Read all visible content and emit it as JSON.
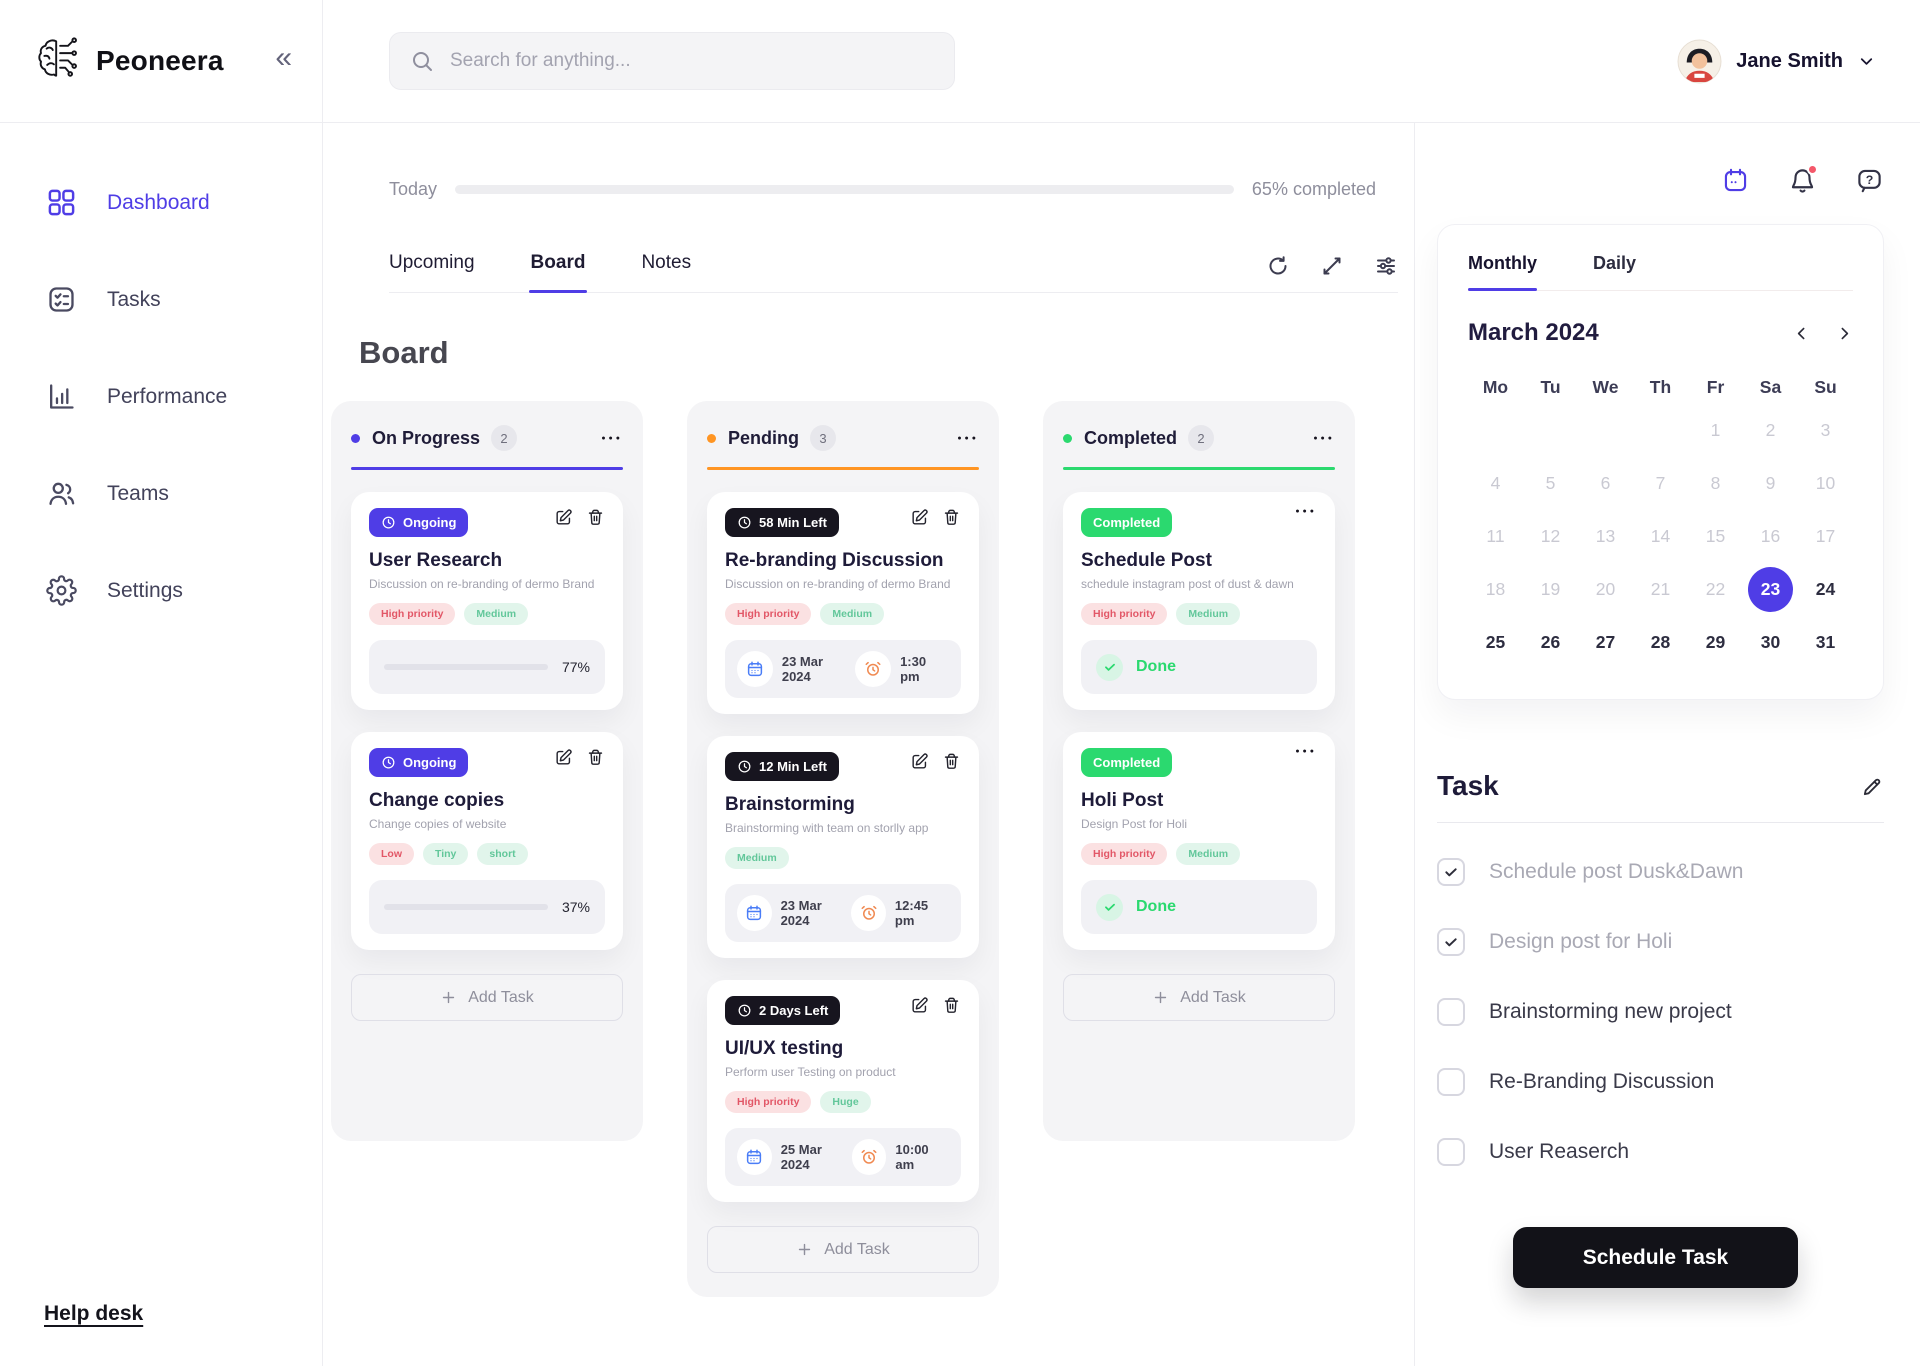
{
  "colors": {
    "primary": "#4f3de6",
    "orange": "#ff9523",
    "green": "#2bd96f"
  },
  "brand": {
    "name": "Peoneera"
  },
  "topbar": {
    "search_placeholder": "Search for anything...",
    "user_name": "Jane Smith"
  },
  "sidebar": {
    "items": [
      {
        "label": "Dashboard",
        "icon": "grid",
        "active": true
      },
      {
        "label": "Tasks",
        "icon": "tasks",
        "active": false
      },
      {
        "label": "Performance",
        "icon": "performance",
        "active": false
      },
      {
        "label": "Teams",
        "icon": "teams",
        "active": false
      },
      {
        "label": "Settings",
        "icon": "settings",
        "active": false
      }
    ],
    "help_link": "Help desk"
  },
  "progress": {
    "label": "Today",
    "percent": 65,
    "status_text": "65% completed"
  },
  "view_tabs": [
    {
      "label": "Upcoming",
      "active": false
    },
    {
      "label": "Board",
      "active": true
    },
    {
      "label": "Notes",
      "active": false
    }
  ],
  "board": {
    "title": "Board",
    "columns": [
      {
        "name": "On Progress",
        "count": "2",
        "accent": "primary",
        "add_label": "Add Task",
        "cards": [
          {
            "badge": {
              "label": "Ongoing",
              "style": "indigo",
              "clock": true
            },
            "actions": "edit-trash",
            "title": "User Research",
            "desc": "Discussion on re-branding of dermo Brand",
            "tags": [
              {
                "label": "High priority",
                "color": "red"
              },
              {
                "label": "Medium",
                "color": "green"
              }
            ],
            "footer": {
              "type": "progress",
              "percent": 77,
              "text": "77%"
            }
          },
          {
            "badge": {
              "label": "Ongoing",
              "style": "indigo",
              "clock": true
            },
            "actions": "edit-trash",
            "title": "Change copies",
            "desc": "Change copies of website",
            "tags": [
              {
                "label": "Low",
                "color": "red"
              },
              {
                "label": "Tiny",
                "color": "green"
              },
              {
                "label": "short",
                "color": "green"
              }
            ],
            "footer": {
              "type": "progress",
              "percent": 37,
              "text": "37%"
            }
          }
        ]
      },
      {
        "name": "Pending",
        "count": "3",
        "accent": "orange",
        "add_label": "Add Task",
        "cards": [
          {
            "badge": {
              "label": "58 Min Left",
              "style": "black",
              "clock": true
            },
            "actions": "edit-trash",
            "title": "Re-branding Discussion",
            "desc": "Discussion on re-branding of dermo Brand",
            "tags": [
              {
                "label": "High priority",
                "color": "red"
              },
              {
                "label": "Medium",
                "color": "green"
              }
            ],
            "footer": {
              "type": "schedule",
              "date": "23 Mar 2024",
              "time": "1:30 pm"
            }
          },
          {
            "badge": {
              "label": "12 Min Left",
              "style": "black",
              "clock": true
            },
            "actions": "edit-trash",
            "title": "Brainstorming",
            "desc": "Brainstorming with team on storlly app",
            "tags": [
              {
                "label": "Medium",
                "color": "green"
              }
            ],
            "footer": {
              "type": "schedule",
              "date": "23 Mar 2024",
              "time": "12:45 pm"
            }
          },
          {
            "badge": {
              "label": "2 Days Left",
              "style": "black",
              "clock": true
            },
            "actions": "edit-trash",
            "title": "UI/UX testing",
            "desc": "Perform user Testing on product",
            "tags": [
              {
                "label": "High priority",
                "color": "red"
              },
              {
                "label": "Huge",
                "color": "green"
              }
            ],
            "footer": {
              "type": "schedule",
              "date": "25 Mar 2024",
              "time": "10:00 am"
            }
          }
        ]
      },
      {
        "name": "Completed",
        "count": "2",
        "accent": "green",
        "add_label": "Add Task",
        "cards": [
          {
            "badge": {
              "label": "Completed",
              "style": "green",
              "clock": false
            },
            "actions": "menu",
            "title": "Schedule Post",
            "desc": "schedule instagram post of dust & dawn",
            "tags": [
              {
                "label": "High priority",
                "color": "red"
              },
              {
                "label": "Medium",
                "color": "green"
              }
            ],
            "footer": {
              "type": "done",
              "label": "Done"
            }
          },
          {
            "badge": {
              "label": "Completed",
              "style": "green",
              "clock": false
            },
            "actions": "menu",
            "title": "Holi Post",
            "desc": "Design Post for Holi",
            "tags": [
              {
                "label": "High priority",
                "color": "red"
              },
              {
                "label": "Medium",
                "color": "green"
              }
            ],
            "footer": {
              "type": "done",
              "label": "Done"
            }
          }
        ]
      }
    ]
  },
  "panel": {
    "tabs": [
      {
        "label": "Monthly",
        "active": true
      },
      {
        "label": "Daily",
        "active": false
      }
    ],
    "calendar": {
      "month_label": "March 2024",
      "weekdays": [
        "Mo",
        "Tu",
        "We",
        "Th",
        "Fr",
        "Sa",
        "Su"
      ],
      "days": [
        {
          "d": "",
          "s": "empty"
        },
        {
          "d": "",
          "s": "empty"
        },
        {
          "d": "",
          "s": "empty"
        },
        {
          "d": "",
          "s": "empty"
        },
        {
          "d": "1",
          "s": "muted"
        },
        {
          "d": "2",
          "s": "muted"
        },
        {
          "d": "3",
          "s": "muted"
        },
        {
          "d": "4",
          "s": "muted"
        },
        {
          "d": "5",
          "s": "muted"
        },
        {
          "d": "6",
          "s": "muted"
        },
        {
          "d": "7",
          "s": "muted"
        },
        {
          "d": "8",
          "s": "muted"
        },
        {
          "d": "9",
          "s": "muted"
        },
        {
          "d": "10",
          "s": "muted"
        },
        {
          "d": "11",
          "s": "muted"
        },
        {
          "d": "12",
          "s": "muted"
        },
        {
          "d": "13",
          "s": "muted"
        },
        {
          "d": "14",
          "s": "muted"
        },
        {
          "d": "15",
          "s": "muted"
        },
        {
          "d": "16",
          "s": "muted"
        },
        {
          "d": "17",
          "s": "muted"
        },
        {
          "d": "18",
          "s": "muted"
        },
        {
          "d": "19",
          "s": "muted"
        },
        {
          "d": "20",
          "s": "muted"
        },
        {
          "d": "21",
          "s": "muted"
        },
        {
          "d": "22",
          "s": "muted"
        },
        {
          "d": "23",
          "s": "selected"
        },
        {
          "d": "24",
          "s": "normal"
        },
        {
          "d": "25",
          "s": "normal"
        },
        {
          "d": "26",
          "s": "normal"
        },
        {
          "d": "27",
          "s": "normal"
        },
        {
          "d": "28",
          "s": "normal"
        },
        {
          "d": "29",
          "s": "normal"
        },
        {
          "d": "30",
          "s": "normal"
        },
        {
          "d": "31",
          "s": "normal"
        }
      ]
    },
    "task_section": {
      "title": "Task",
      "items": [
        {
          "label": "Schedule post Dusk&Dawn",
          "checked": true
        },
        {
          "label": "Design post for Holi",
          "checked": true
        },
        {
          "label": "Brainstorming new project",
          "checked": false
        },
        {
          "label": "Re-Branding Discussion",
          "checked": false
        },
        {
          "label": "User Reaserch",
          "checked": false
        }
      ],
      "cta_label": "Schedule Task"
    }
  }
}
